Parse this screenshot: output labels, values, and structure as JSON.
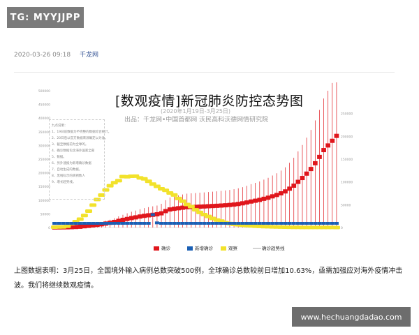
{
  "badge": {
    "text": "TG: MYYJJPP"
  },
  "meta": {
    "date": "2020-03-26 09:18",
    "source": "千龙网"
  },
  "chart_data": {
    "type": "bar",
    "title": "[数观疫情]新冠肺炎防控态势图",
    "subtitle": "(2020年1月19日-3月25日)",
    "source": "出品：千龙网•中国首都网   沃民高科沃德网情研究院",
    "left_axis": {
      "min": 0,
      "max": 500000,
      "ticks": [
        0,
        50000,
        100000,
        150000,
        200000,
        250000,
        300000,
        350000,
        400000,
        450000,
        500000
      ]
    },
    "right_axis": {
      "min": 0,
      "max": 300000,
      "ticks": [
        0,
        50000,
        100000,
        150000,
        200000,
        250000
      ]
    },
    "legend": [
      "确诊",
      "新增确诊",
      "观察",
      "确诊趋势线"
    ],
    "colors": {
      "confirmed": "#e0161c",
      "new_confirmed": "#1a5fb4",
      "observation": "#f2e22b",
      "trend": "#aaaaaa"
    },
    "notes": [
      "九点说明：",
      "1、19日前数据为不完整的数据综合统计。",
      "2、20日后以官方数据来源确定以为准。",
      "3、截至数据前为全球的。",
      "4、确诊数据包含海外国家全部",
      "5、数据。",
      "6、另外速报为新增确诊数据",
      "7、自动生成的数据。",
      "8、黑线标示的病例数人",
      "9、增长趋势线。"
    ],
    "confirmed": [
      300,
      440,
      600,
      800,
      1300,
      2000,
      2800,
      4600,
      6000,
      7800,
      9700,
      11800,
      14500,
      17300,
      20500,
      24400,
      28000,
      31200,
      34600,
      37200,
      40200,
      42700,
      44700,
      46500,
      48300,
      52000,
      60000,
      66000,
      68500,
      70500,
      72500,
      74300,
      75000,
      75600,
      76300,
      77000,
      77800,
      78600,
      79400,
      80300,
      81300,
      82500,
      84000,
      86000,
      88500,
      91500,
      95000,
      98000,
      101000,
      105000,
      109000,
      114000,
      119000,
      125000,
      132000,
      142000,
      153000,
      167000,
      181000,
      197000,
      214000,
      235000,
      258000,
      283000,
      300000,
      317000,
      335000
    ],
    "new_confirmed": [
      77,
      149,
      131,
      259,
      444,
      688,
      769,
      1771,
      1459,
      1737,
      1981,
      2099,
      2590,
      2829,
      3235,
      3887,
      3694,
      3143,
      3385,
      2652,
      2973,
      2467,
      2015,
      14108,
      5090,
      2641,
      2008,
      2048,
      1886,
      1749,
      391,
      889,
      823,
      648,
      214,
      508,
      406,
      433,
      327,
      427,
      573,
      202,
      125,
      119,
      139,
      143,
      99,
      44,
      40,
      19,
      24,
      15,
      8,
      11,
      20,
      16,
      21,
      13,
      34,
      39,
      41,
      46,
      39,
      78,
      47,
      67,
      78
    ],
    "observation": [
      1394,
      1897,
      2197,
      4928,
      13967,
      21556,
      30453,
      44132,
      59990,
      81947,
      102427,
      118478,
      137594,
      152700,
      163844,
      171329,
      186354,
      185555,
      187518,
      187728,
      181386,
      177984,
      169039,
      158764,
      150539,
      141552,
      135881,
      126363,
      118885,
      106089,
      96260,
      84153,
      76582,
      64734,
      55141,
      47101,
      40651,
      33028,
      27437,
      23689,
      17936,
      14718,
      11817,
      10025,
      8401,
      7101,
      5919,
      4822,
      3986,
      3234,
      2766,
      2261,
      1812,
      1473,
      1160,
      923,
      716,
      597,
      434,
      411,
      363,
      320,
      265,
      234,
      196,
      168,
      139
    ]
  },
  "article": {
    "text": "上图数据表明：3月25日，全国境外输入病例总数突破500例，全球确诊总数较前日增加10.63%，亟需加强应对海外疫情冲击波。我们将继续数观疫情。"
  },
  "watermark": {
    "text": "www.hechuangdadao.com"
  }
}
